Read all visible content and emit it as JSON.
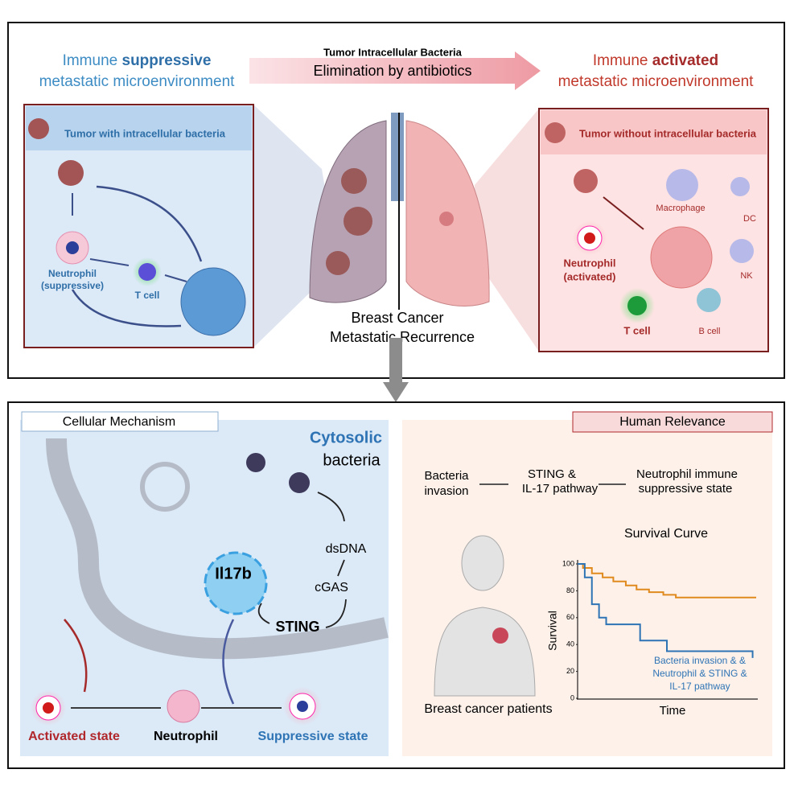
{
  "top_panel": {
    "left_title": {
      "lines": [
        [
          "Immune ",
          "suppressive"
        ],
        [
          "metastatic microenvironment"
        ]
      ]
    },
    "arrow": {
      "subtitle": "Tumor Intracellular Bacteria",
      "label": "Elimination by antibiotics"
    },
    "right_title": {
      "lines": [
        [
          "Immune ",
          "activated"
        ],
        [
          "metastatic microenvironment"
        ]
      ]
    },
    "left_box": {
      "title": "Tumor with intracellular bacteria",
      "neutrophil": [
        "Neutrophil",
        "(suppressive)"
      ],
      "t_cell": "T cell"
    },
    "right_box": {
      "title": "Tumor without intracellular bacteria",
      "macrophage": "Macrophage",
      "dc": "DC",
      "neutrophil": [
        "Neutrophil",
        "(activated)"
      ],
      "nk": "NK",
      "t_cell": "T cell",
      "b_cell": "B cell"
    },
    "center_label": [
      "Breast Cancer",
      "Metastatic Recurrence"
    ]
  },
  "mechanism_panel": {
    "title": "Cellular Mechanism",
    "cytosolic": "Cytosolic",
    "bacteria": "bacteria",
    "dsdna": "dsDNA",
    "cgas": "cGAS",
    "sting": "STING",
    "gene": "Il17b",
    "neutrophil": "Neutrophil",
    "activated": "Activated state",
    "suppressive": "Suppressive state"
  },
  "relevance_panel": {
    "title": "Human Relevance",
    "flow": [
      [
        "Bacteria",
        "invasion"
      ],
      [
        "STING &",
        "IL-17 pathway"
      ],
      [
        "Neutrophil immune",
        "suppressive state"
      ]
    ],
    "patients": "Breast cancer patients",
    "survival_chart": {
      "type": "line",
      "title": "Survival Curve",
      "x_label": "Time",
      "y_label": "Survival",
      "xlim": [
        0,
        100
      ],
      "ylim": [
        0,
        100
      ],
      "yticks": [
        0,
        20,
        40,
        60,
        80,
        100
      ],
      "series": [
        {
          "color": "#e08a1e",
          "x": [
            0,
            3,
            3,
            8,
            8,
            14,
            14,
            20,
            20,
            27,
            27,
            33,
            33,
            40,
            40,
            48,
            48,
            55,
            55,
            100
          ],
          "values": [
            100,
            100,
            97,
            97,
            93,
            93,
            90,
            90,
            87,
            87,
            84,
            84,
            81,
            81,
            79,
            79,
            77,
            77,
            75,
            75
          ]
        },
        {
          "color": "#2e74b5",
          "label_lines": [
            "Bacteria invasion & &",
            "Neutrophil & STING &",
            "IL-17  pathway"
          ],
          "x": [
            0,
            4,
            4,
            8,
            8,
            12,
            12,
            16,
            16,
            35,
            35,
            50,
            50,
            98,
            98
          ],
          "values": [
            100,
            100,
            90,
            90,
            70,
            70,
            60,
            60,
            55,
            55,
            43,
            43,
            35,
            35,
            30
          ]
        }
      ]
    }
  }
}
